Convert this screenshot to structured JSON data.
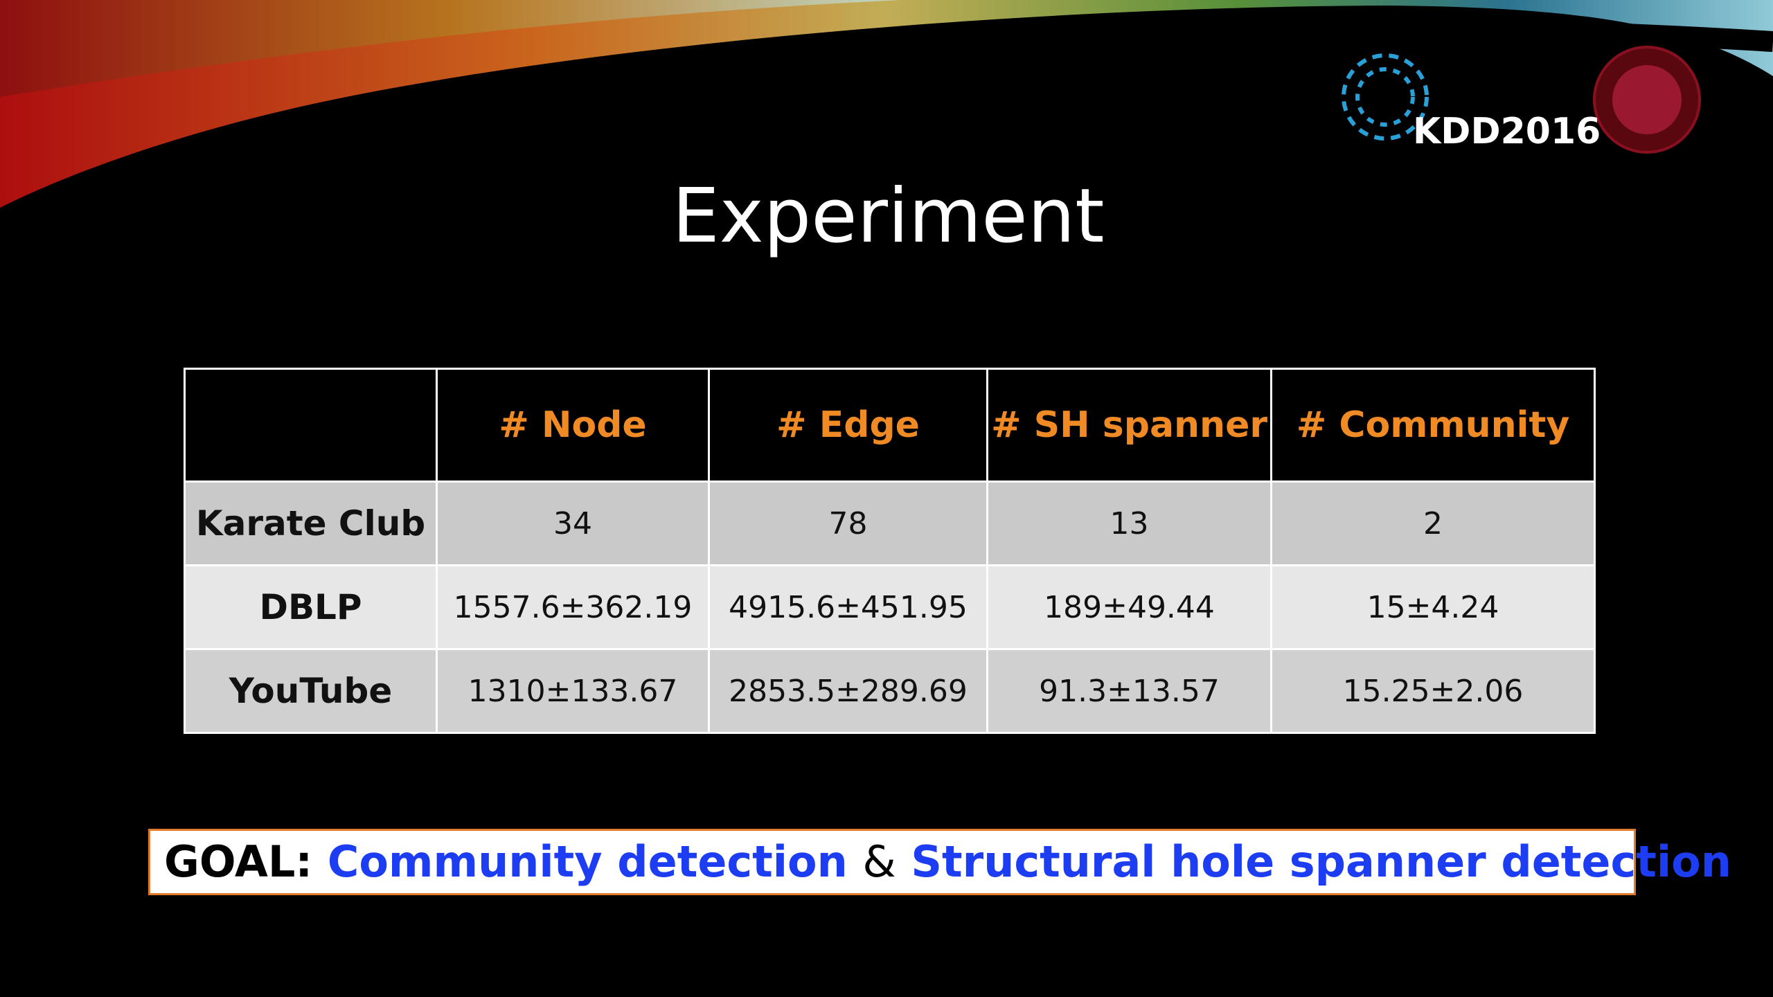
{
  "header": {
    "logo_text": "KDD2016"
  },
  "title": "Experiment",
  "table": {
    "columns": [
      "# Node",
      "# Edge",
      "# SH spanner",
      "# Community"
    ],
    "rows": [
      [
        "Karate Club",
        "34",
        "78",
        "13",
        "2"
      ],
      [
        "DBLP",
        "1557.6±362.19",
        "4915.6±451.95",
        "189±49.44",
        "15±4.24"
      ],
      [
        "YouTube",
        "1310±133.67",
        "2853.5±289.69",
        "91.3±13.57",
        "15.25±2.06"
      ]
    ]
  },
  "goal": {
    "label": "GOAL:",
    "part1": "Community detection",
    "connector": "&",
    "part2": "Structural hole spanner detection"
  }
}
